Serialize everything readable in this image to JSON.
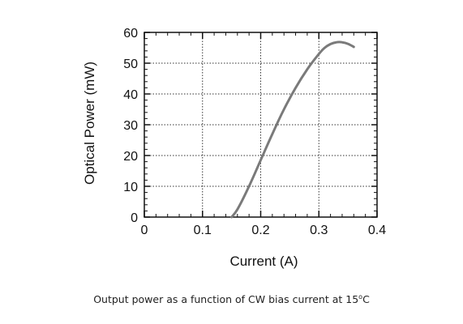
{
  "caption": {
    "text": "Output power as a function of CW bias current at 15",
    "degree_mark": "o",
    "unit": "C"
  },
  "chart_data": {
    "type": "line",
    "title": "",
    "xlabel": "Current (A)",
    "ylabel": "Optical Power (mW)",
    "xlim": [
      0,
      0.4
    ],
    "ylim": [
      0,
      60
    ],
    "xticks": [
      0,
      0.1,
      0.2,
      0.3,
      0.4
    ],
    "xtick_labels": [
      "0",
      "0.1",
      "0.2",
      "0.3",
      "0.4"
    ],
    "yticks": [
      0,
      10,
      20,
      30,
      40,
      50,
      60
    ],
    "ytick_labels": [
      "0",
      "10",
      "20",
      "30",
      "40",
      "50",
      "60"
    ],
    "grid": true,
    "grid_style": "dotted",
    "line_color": "#7a7a7a",
    "series": [
      {
        "x": [
          0.15,
          0.16,
          0.18,
          0.2,
          0.22,
          0.24,
          0.26,
          0.28,
          0.3,
          0.31,
          0.32,
          0.33,
          0.34,
          0.35,
          0.36
        ],
        "y": [
          0,
          2.5,
          10,
          18.5,
          27,
          35,
          42,
          48,
          53,
          55,
          56.2,
          56.8,
          56.8,
          56.3,
          55.3
        ]
      }
    ]
  }
}
